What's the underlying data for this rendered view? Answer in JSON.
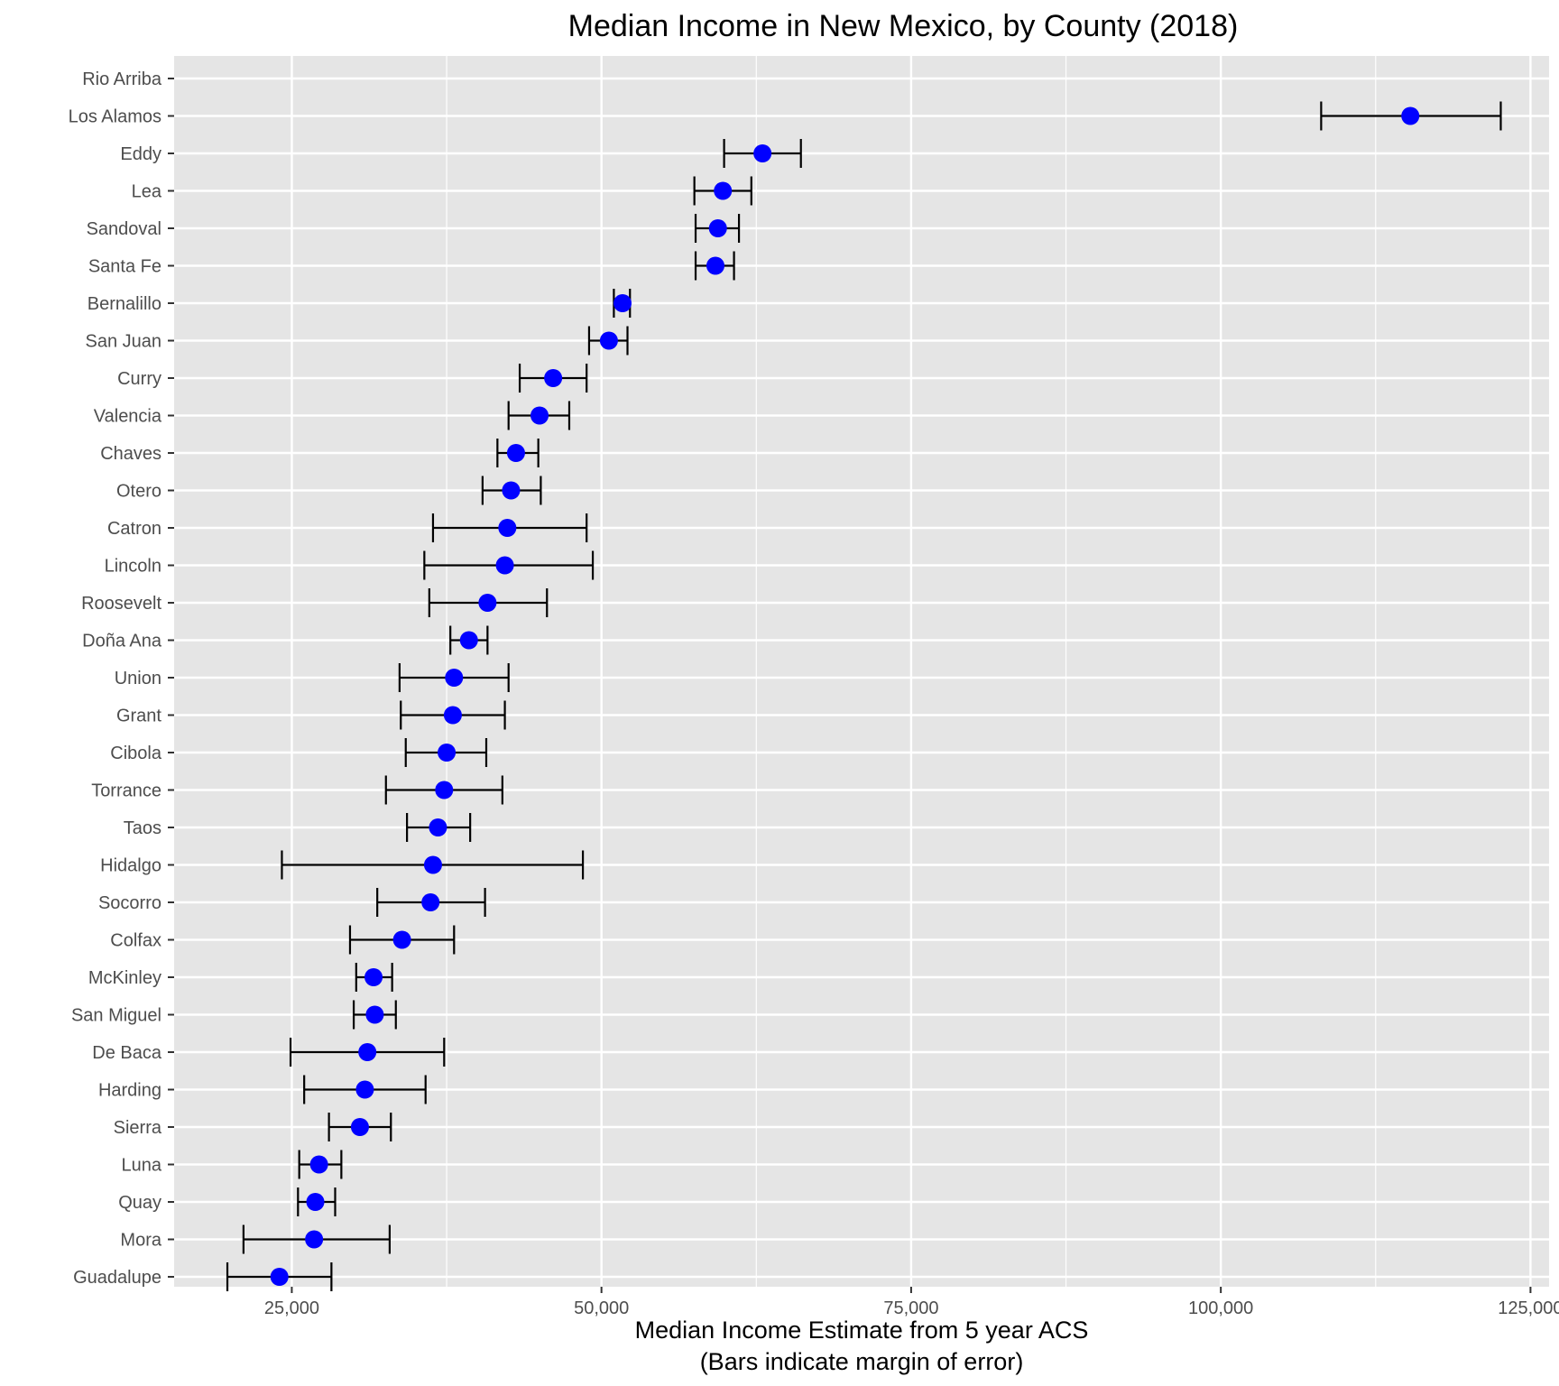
{
  "chart_data": {
    "type": "scatter",
    "title": "Median Income in New Mexico, by County (2018)",
    "xlabel_lines": [
      "Median Income Estimate from 5 year ACS",
      "(Bars indicate margin of error)"
    ],
    "ylabel": "",
    "xlim": [
      15500,
      126500
    ],
    "x_ticks": [
      25000,
      50000,
      75000,
      100000,
      125000
    ],
    "x_tick_labels": [
      "25,000",
      "50,000",
      "75,000",
      "100,000",
      "125,000"
    ],
    "x_minor_ticks": [
      37500,
      62500,
      87500,
      112500
    ],
    "grid": true,
    "background": "#e5e5e5",
    "grid_color": "#ffffff",
    "point_color": "#0000ff",
    "errorbar_color": "#000000",
    "categories": [
      "Rio Arriba",
      "Los Alamos",
      "Eddy",
      "Lea",
      "Sandoval",
      "Santa Fe",
      "Bernalillo",
      "San Juan",
      "Curry",
      "Valencia",
      "Chaves",
      "Otero",
      "Catron",
      "Lincoln",
      "Roosevelt",
      "Doña Ana",
      "Union",
      "Grant",
      "Cibola",
      "Torrance",
      "Taos",
      "Hidalgo",
      "Socorro",
      "Colfax",
      "McKinley",
      "San Miguel",
      "De Baca",
      "Harding",
      "Sierra",
      "Luna",
      "Quay",
      "Mora",
      "Guadalupe"
    ],
    "estimate": [
      null,
      115300,
      63000,
      59800,
      59400,
      59200,
      51700,
      50600,
      46100,
      45000,
      43100,
      42700,
      42400,
      42200,
      40800,
      39300,
      38100,
      38000,
      37500,
      37300,
      36800,
      36400,
      36200,
      33900,
      31600,
      31700,
      31100,
      30900,
      30500,
      27200,
      26900,
      26800,
      24000
    ],
    "moe_low": [
      null,
      108100,
      59900,
      57500,
      57600,
      57600,
      51000,
      49000,
      43400,
      42500,
      41600,
      40400,
      36400,
      35700,
      36100,
      37800,
      33700,
      33800,
      34200,
      32600,
      34300,
      24200,
      31900,
      29700,
      30200,
      30000,
      24900,
      26000,
      28000,
      25600,
      25500,
      21100,
      19800
    ],
    "moe_high": [
      null,
      122600,
      66100,
      62100,
      61100,
      60700,
      52300,
      52100,
      48800,
      47400,
      44900,
      45100,
      48800,
      49300,
      45600,
      40800,
      42500,
      42200,
      40700,
      42000,
      39400,
      48500,
      40600,
      38100,
      33100,
      33400,
      37300,
      35800,
      33000,
      29000,
      28500,
      32900,
      28200
    ]
  }
}
